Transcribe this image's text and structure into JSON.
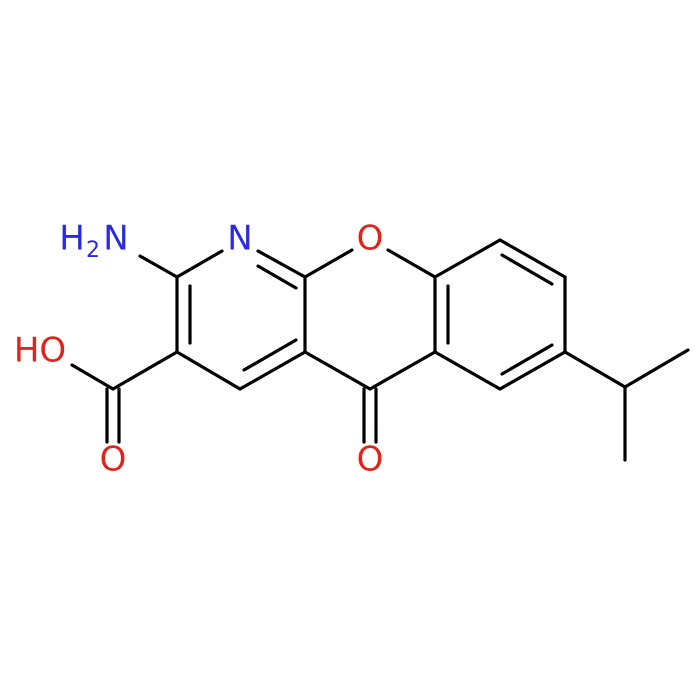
{
  "atoms": [
    {
      "label": "N"
    },
    {
      "label": "O"
    },
    {
      "label": "O"
    },
    {
      "label": "O"
    },
    {
      "label": "HO"
    },
    {
      "parts": [
        "H",
        "2",
        "N"
      ]
    }
  ]
}
